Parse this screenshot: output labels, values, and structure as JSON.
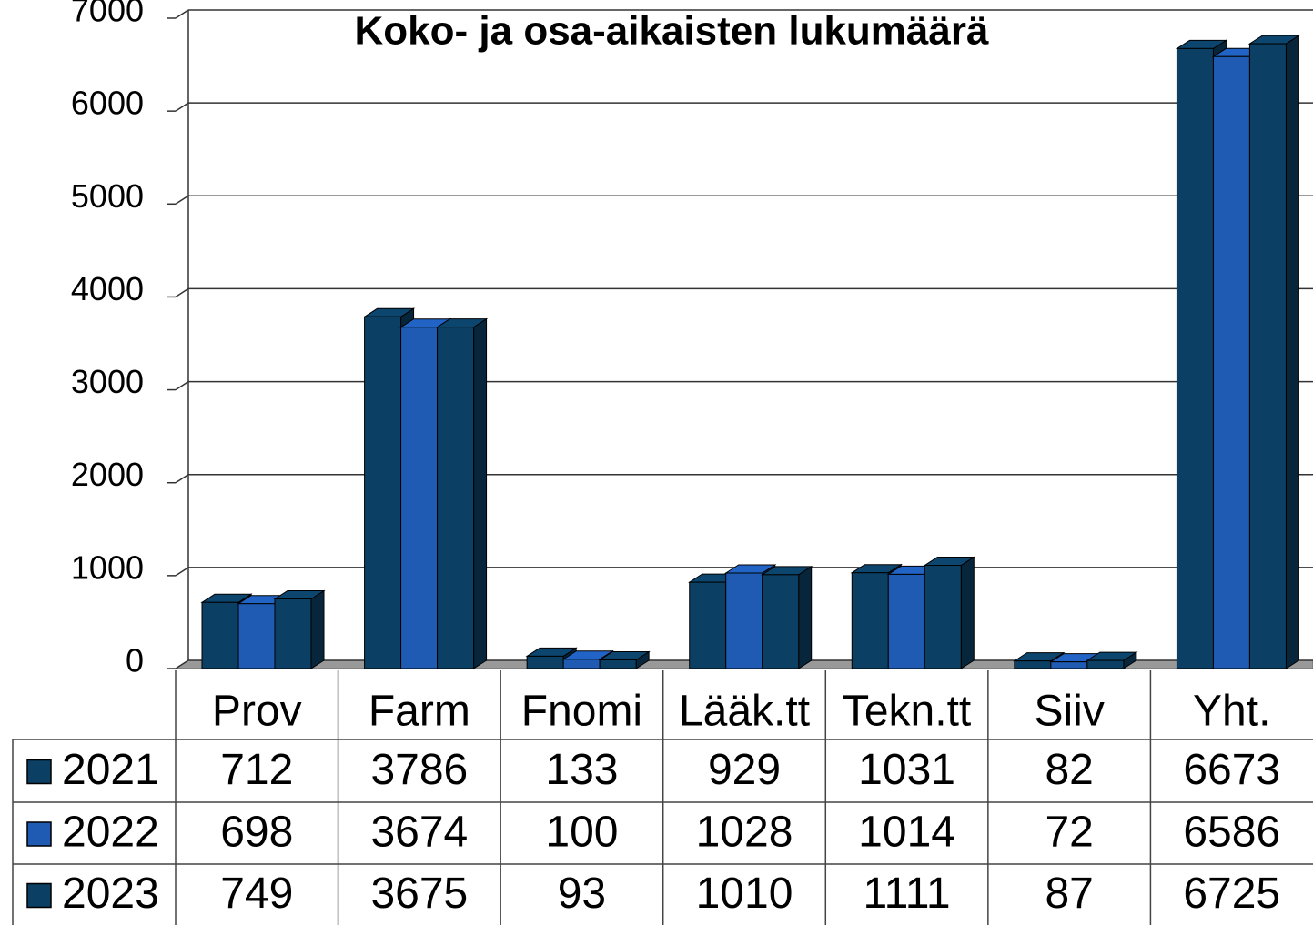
{
  "chart_data": {
    "type": "bar",
    "title": "Koko- ja osa-aikaisten lukumäärä",
    "categories": [
      "Prov",
      "Farm",
      "Fnomi",
      "Lääk.tt",
      "Tekn.tt",
      "Siiv",
      "Yht."
    ],
    "series": [
      {
        "name": "2021",
        "color": "#0b3f63",
        "values": [
          712,
          3786,
          133,
          929,
          1031,
          82,
          6673
        ]
      },
      {
        "name": "2022",
        "color": "#1f5bb3",
        "values": [
          698,
          3674,
          100,
          1028,
          1014,
          72,
          6586
        ]
      },
      {
        "name": "2023",
        "color": "#0b3f63",
        "values": [
          749,
          3675,
          93,
          1010,
          1111,
          87,
          6725
        ]
      }
    ],
    "ylim": [
      0,
      7000
    ],
    "yticks": [
      0,
      1000,
      2000,
      3000,
      4000,
      5000,
      6000,
      7000
    ],
    "grid": true
  }
}
